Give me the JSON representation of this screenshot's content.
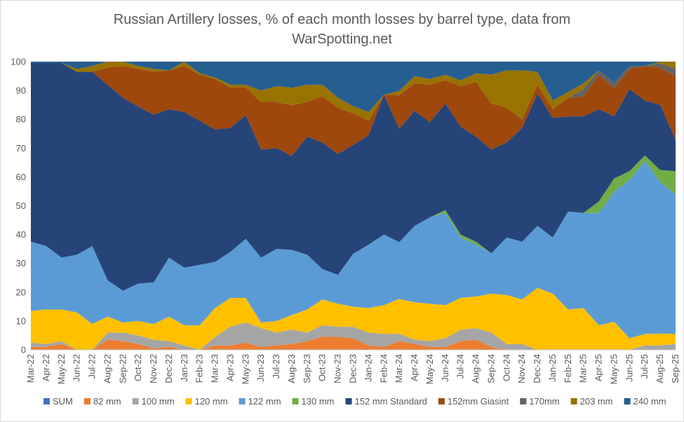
{
  "chart_data": {
    "type": "area",
    "stacked": true,
    "normalized_percent": true,
    "title_line1": "Russian Artillery losses, % of each month losses by barrel type, data from",
    "title_line2": "WarSpotting.net",
    "xlabel": "",
    "ylabel": "",
    "ylim": [
      0,
      100
    ],
    "yticks": [
      "0",
      "10",
      "20",
      "30",
      "40",
      "50",
      "60",
      "70",
      "80",
      "90",
      "100"
    ],
    "grid": true,
    "legend_position": "bottom",
    "categories": [
      "Mar-22",
      "Apr-22",
      "May-22",
      "Jun-22",
      "Jul-22",
      "Aug-22",
      "Sep-22",
      "Oct-22",
      "Nov-22",
      "Dec-22",
      "Jan-23",
      "Feb-23",
      "Mar-23",
      "Apr-23",
      "May-23",
      "Jun-23",
      "Jul-23",
      "Aug-23",
      "Sep-23",
      "Oct-23",
      "Nov-23",
      "Dec-23",
      "Jan-24",
      "Feb-24",
      "Mar-24",
      "Apr-24",
      "May-24",
      "Jun-24",
      "Jul-24",
      "Aug-24",
      "Sep-24",
      "Oct-24",
      "Nov-24",
      "Dec-24",
      "Jan-25",
      "Feb-25",
      "Mar-25",
      "Apr-25",
      "May-25",
      "Jun-25",
      "Jul-25",
      "Aug-25",
      "Sep-25"
    ],
    "series": [
      {
        "name": "SUM",
        "color": "#4472c4",
        "values": [
          0,
          0,
          0,
          0,
          0,
          0,
          0,
          0,
          0,
          0,
          0,
          0,
          0,
          0,
          0,
          0,
          0,
          0,
          0,
          0,
          0,
          0,
          0,
          0,
          0,
          0,
          0,
          0,
          0,
          0,
          0,
          0,
          0,
          0,
          0,
          0,
          0,
          0,
          0,
          0,
          0,
          0,
          0
        ]
      },
      {
        "name": "82 mm",
        "color": "#ed7d31",
        "values": [
          1,
          1,
          2,
          0,
          0,
          3.5,
          3,
          2,
          0.5,
          1,
          0,
          0,
          1.5,
          1.5,
          2.5,
          1,
          1.5,
          2,
          3,
          4.5,
          4.5,
          4,
          1.5,
          1,
          3,
          2,
          1,
          1,
          3,
          3.5,
          1,
          0,
          0,
          0,
          0,
          0,
          0,
          0,
          0,
          0,
          0,
          0,
          0
        ]
      },
      {
        "name": "100 mm",
        "color": "#a5a5a5",
        "values": [
          1.5,
          1,
          1,
          0,
          0,
          2.5,
          3,
          3,
          3,
          2,
          1.5,
          0,
          3,
          6.5,
          7,
          6.5,
          4.5,
          5,
          3,
          4,
          3.5,
          4,
          4.5,
          4.5,
          2.5,
          1.5,
          2,
          3,
          4,
          4,
          5,
          2,
          2,
          0,
          0,
          0,
          0,
          0,
          0,
          0,
          1.5,
          1.5,
          2
        ]
      },
      {
        "name": "120 mm",
        "color": "#ffc000",
        "values": [
          11,
          12,
          11,
          13,
          9,
          5.5,
          3.5,
          5,
          5.5,
          8.5,
          7,
          8.5,
          10,
          10,
          8.5,
          2,
          4,
          5,
          8,
          9,
          8,
          7,
          8.5,
          10,
          12,
          13,
          13,
          11.5,
          11,
          11,
          13.5,
          17,
          15.5,
          21.5,
          19.5,
          14,
          14.5,
          8.5,
          9.5,
          4,
          4,
          4,
          3.5
        ]
      },
      {
        "name": "122 mm",
        "color": "#5b9bd5",
        "values": [
          24,
          22,
          18,
          20,
          27,
          12.5,
          11,
          13,
          14.5,
          20.5,
          20,
          21,
          16,
          16,
          20.5,
          22.5,
          25,
          22.5,
          19,
          10.5,
          10,
          18.5,
          22,
          24.5,
          19.5,
          26.5,
          30,
          32,
          21,
          18,
          14,
          20,
          20,
          21.5,
          19.5,
          34,
          33,
          39,
          44,
          55,
          60,
          51,
          48.5
        ]
      },
      {
        "name": "130 mm",
        "color": "#70ad47",
        "values": [
          0,
          0,
          0,
          0,
          0,
          0,
          0,
          0,
          0,
          0,
          0,
          0,
          0,
          0,
          0,
          0,
          0,
          0,
          0,
          0,
          0,
          0,
          0,
          0,
          0,
          0,
          0,
          1,
          1,
          1,
          0,
          0,
          0,
          0,
          0,
          0,
          0,
          4,
          4.5,
          3,
          2,
          4,
          8
        ]
      },
      {
        "name": "152 mm Standard",
        "color": "#264478",
        "values": [
          62,
          63.5,
          67.5,
          63.5,
          60.5,
          67.5,
          67,
          61.5,
          58.5,
          51.5,
          54,
          50,
          46,
          43,
          43,
          37.5,
          35,
          32.5,
          41,
          44,
          42,
          38,
          38,
          48.5,
          39,
          40,
          33,
          37,
          37.5,
          36.5,
          36,
          33,
          39.5,
          46,
          41.5,
          33,
          33.5,
          32,
          21,
          28.5,
          19,
          22,
          11
        ]
      },
      {
        "name": "152mm Giasint",
        "color": "#9e480e",
        "values": [
          0,
          0,
          0,
          0,
          0,
          6,
          11,
          13,
          15,
          13.5,
          16,
          16,
          17.5,
          14,
          9.5,
          16.5,
          16,
          17.5,
          12,
          16,
          16,
          11,
          5,
          0,
          11.5,
          9.5,
          13,
          8,
          14,
          19,
          16,
          12,
          3,
          3,
          3,
          6.5,
          7,
          12,
          9.5,
          7,
          12,
          12.5,
          22
        ]
      },
      {
        "name": "170mm",
        "color": "#636363",
        "values": [
          0,
          0,
          0,
          0,
          0,
          0,
          0,
          0,
          0,
          0,
          0,
          0,
          0,
          0,
          0,
          0,
          0,
          0,
          0,
          0,
          0,
          0,
          0,
          0,
          0,
          0,
          0,
          0,
          0,
          0,
          0,
          0,
          0,
          0,
          0,
          0,
          2.5,
          1.5,
          2,
          1,
          0,
          1.5,
          2.5
        ]
      },
      {
        "name": "203 mm",
        "color": "#997300",
        "values": [
          0,
          0,
          0,
          1,
          2,
          2,
          1.5,
          1,
          1,
          0,
          1.5,
          0.5,
          0.5,
          1,
          1,
          4,
          5.5,
          6,
          6,
          4,
          3.5,
          2.5,
          3,
          0,
          1.5,
          2.5,
          2,
          2,
          2,
          3,
          10,
          13,
          17,
          4.5,
          3,
          2,
          2,
          0,
          0,
          0,
          0,
          0.5,
          2.5
        ]
      },
      {
        "name": "240 mm",
        "color": "#255e91",
        "values": [
          0.5,
          0.5,
          0.5,
          2.5,
          1.5,
          0,
          0,
          1.5,
          2.5,
          3,
          0,
          4,
          5.5,
          8,
          8,
          10,
          8.5,
          9,
          8,
          8,
          12.5,
          15.5,
          17.5,
          11.5,
          10,
          5,
          6,
          4.5,
          6.5,
          4,
          4.5,
          3,
          3,
          3.5,
          13.5,
          10.5,
          7.5,
          3,
          7,
          1.5,
          1.5,
          0,
          0
        ]
      }
    ]
  }
}
